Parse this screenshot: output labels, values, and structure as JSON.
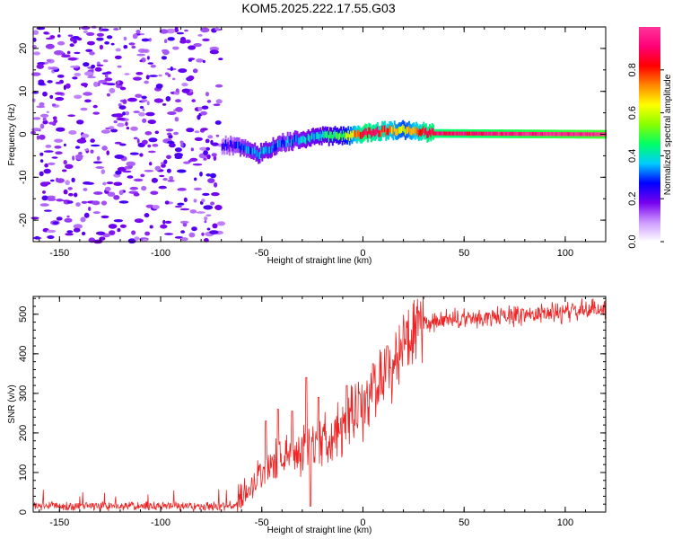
{
  "title": "KOM5.2025.222.17.55.G03",
  "chart_data": [
    {
      "type": "heatmap",
      "name": "spectrogram",
      "xlabel": "Height of straight line (km)",
      "ylabel": "Frequency (Hz)",
      "xlim": [
        -163,
        120
      ],
      "ylim": [
        -25,
        25
      ],
      "xticks": [
        -150,
        -100,
        -50,
        0,
        50,
        100
      ],
      "yticks": [
        -20,
        -10,
        0,
        10,
        20
      ],
      "xtick_labels": [
        "-150",
        "-100",
        "-50",
        "0",
        "50",
        "100"
      ],
      "ytick_labels": [
        "-20",
        "-10",
        "0",
        "10",
        "20"
      ],
      "noise_region_km": [
        -163,
        -70
      ],
      "signal_track": {
        "height_km": [
          -70,
          -60,
          -52,
          -45,
          -40,
          -30,
          -20,
          -10,
          0,
          10,
          20,
          30,
          35,
          120
        ],
        "frequency_hz": [
          -2.5,
          -3.0,
          -4.5,
          -3.0,
          -2.0,
          -1.0,
          -0.5,
          -0.3,
          0.2,
          0.8,
          1.0,
          0.5,
          0.2,
          0.0
        ],
        "amplitude": [
          0.2,
          0.3,
          0.35,
          0.35,
          0.3,
          0.35,
          0.4,
          0.5,
          0.9,
          0.8,
          0.6,
          0.85,
          0.9,
          1.0
        ]
      },
      "colorbar": {
        "label": "Normalized spectral amplitude",
        "range": [
          0,
          1
        ],
        "ticks": [
          0.0,
          0.2,
          0.4,
          0.6,
          0.8
        ],
        "tick_labels": [
          "0.0",
          "0.2",
          "0.4",
          "0.6",
          "0.8"
        ],
        "colors": [
          "#ffffff",
          "#cc99ff",
          "#7700ee",
          "#0000ff",
          "#00ccff",
          "#00ff66",
          "#88ff00",
          "#ffff00",
          "#ff8800",
          "#ff0000",
          "#ff0077",
          "#ff3399"
        ]
      }
    },
    {
      "type": "line",
      "name": "snr",
      "xlabel": "Height of straight line (km)",
      "ylabel": "SNR (v/v)",
      "xlim": [
        -163,
        120
      ],
      "ylim": [
        0,
        545
      ],
      "xticks": [
        -150,
        -100,
        -50,
        0,
        50,
        100
      ],
      "yticks": [
        0,
        100,
        200,
        300,
        400,
        500
      ],
      "xtick_labels": [
        "-150",
        "-100",
        "-50",
        "0",
        "50",
        "100"
      ],
      "ytick_labels": [
        "0",
        "100",
        "200",
        "300",
        "400",
        "500"
      ],
      "color": "#ee2222",
      "trend": {
        "x": [
          -163,
          -62,
          -60,
          -55,
          -50,
          -40,
          -30,
          -20,
          -10,
          0,
          10,
          20,
          25,
          30,
          40,
          60,
          80,
          100,
          120
        ],
        "y": [
          15,
          15,
          40,
          75,
          100,
          140,
          160,
          185,
          215,
          265,
          340,
          420,
          450,
          470,
          485,
          490,
          500,
          505,
          515
        ]
      },
      "spikes": [
        {
          "x": -48,
          "y": 230
        },
        {
          "x": -42,
          "y": 260
        },
        {
          "x": -35,
          "y": 255
        },
        {
          "x": -28,
          "y": 340
        },
        {
          "x": -26,
          "y": 15
        },
        {
          "x": -22,
          "y": 290
        },
        {
          "x": -8,
          "y": 320
        },
        {
          "x": 5,
          "y": 375
        },
        {
          "x": 12,
          "y": 420
        }
      ]
    }
  ]
}
